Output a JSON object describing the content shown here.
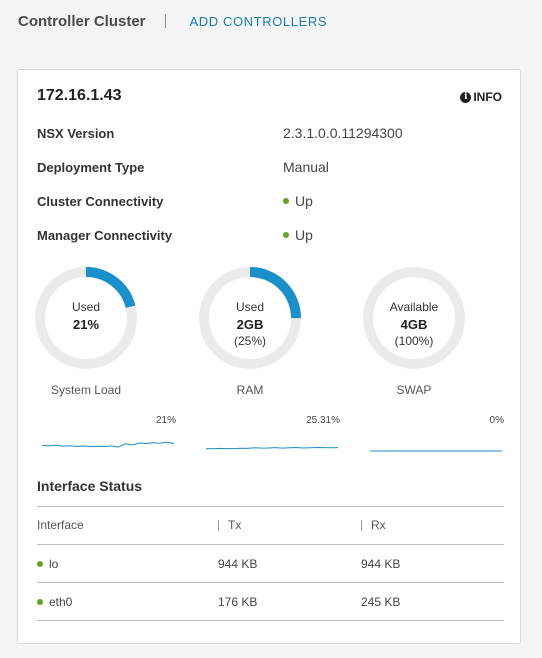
{
  "header": {
    "title": "Controller Cluster",
    "add_label": "ADD CONTROLLERS"
  },
  "card": {
    "title": "172.16.1.43",
    "info_label": "INFO",
    "properties": [
      {
        "label": "NSX Version",
        "value": "2.3.1.0.0.11294300"
      },
      {
        "label": "Deployment Type",
        "value": "Manual"
      },
      {
        "label": "Cluster Connectivity",
        "value": "Up",
        "status": "up"
      },
      {
        "label": "Manager Connectivity",
        "value": "Up",
        "status": "up"
      }
    ],
    "gauges": [
      {
        "line1": "Used",
        "line2": "21%",
        "line3": "",
        "fraction": 0.21,
        "caption": "System Load"
      },
      {
        "line1": "Used",
        "line2": "2GB",
        "line3": "(25%)",
        "fraction": 0.25,
        "caption": "RAM"
      },
      {
        "line1": "Available",
        "line2": "4GB",
        "line3": "(100%)",
        "fraction": 0.0,
        "caption": "SWAP"
      }
    ],
    "sparklines": [
      {
        "label": "21%",
        "values": [
          0.35,
          0.32,
          0.36,
          0.3,
          0.33,
          0.29,
          0.31,
          0.27,
          0.3,
          0.28,
          0.31,
          0.25,
          0.45,
          0.38,
          0.5,
          0.47,
          0.52,
          0.49,
          0.55,
          0.46
        ]
      },
      {
        "label": "25.31%",
        "values": [
          0.15,
          0.14,
          0.16,
          0.15,
          0.15,
          0.17,
          0.16,
          0.2,
          0.18,
          0.19,
          0.21,
          0.18,
          0.2,
          0.22,
          0.19,
          0.2,
          0.22,
          0.21,
          0.2,
          0.21
        ]
      },
      {
        "label": "0%",
        "values": [
          0,
          0,
          0,
          0,
          0,
          0,
          0,
          0,
          0,
          0,
          0,
          0,
          0,
          0,
          0,
          0,
          0,
          0,
          0,
          0
        ]
      }
    ],
    "interface_section_title": "Interface Status",
    "table": {
      "headers": [
        "Interface",
        "Tx",
        "Rx"
      ],
      "rows": [
        {
          "name": "lo",
          "tx": "944 KB",
          "rx": "944 KB"
        },
        {
          "name": "eth0",
          "tx": "176 KB",
          "rx": "245 KB"
        }
      ]
    }
  },
  "colors": {
    "accent": "#1a8fc9",
    "track": "#ebebeb",
    "status_up": "#62a420",
    "link": "#1a7db0"
  }
}
